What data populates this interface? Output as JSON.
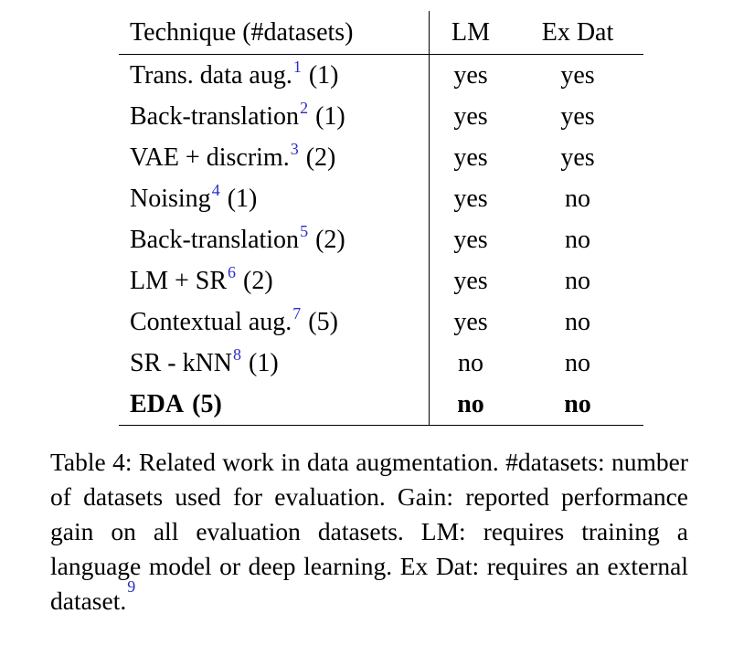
{
  "colors": {
    "footnote_link": "#2b2bc8",
    "text": "#000000",
    "background": "#ffffff"
  },
  "table": {
    "headers": {
      "technique": "Technique (#datasets)",
      "lm": "LM",
      "exdat": "Ex Dat"
    },
    "rows": [
      {
        "name": "Trans. data aug.",
        "ref": "1",
        "datasets": "(1)",
        "lm": "yes",
        "exdat": "yes"
      },
      {
        "name": "Back-translation",
        "ref": "2",
        "datasets": "(1)",
        "lm": "yes",
        "exdat": "yes"
      },
      {
        "name": "VAE + discrim.",
        "ref": "3",
        "datasets": "(2)",
        "lm": "yes",
        "exdat": "yes"
      },
      {
        "name": "Noising",
        "ref": "4",
        "datasets": "(1)",
        "lm": "yes",
        "exdat": "no"
      },
      {
        "name": "Back-translation",
        "ref": "5",
        "datasets": "(2)",
        "lm": "yes",
        "exdat": "no"
      },
      {
        "name": "LM + SR",
        "ref": "6",
        "datasets": "(2)",
        "lm": "yes",
        "exdat": "no"
      },
      {
        "name": "Contextual aug.",
        "ref": "7",
        "datasets": "(5)",
        "lm": "yes",
        "exdat": "no"
      },
      {
        "name": "SR - kNN",
        "ref": "8",
        "datasets": "(1)",
        "lm": "no",
        "exdat": "no"
      },
      {
        "name": "EDA",
        "ref": "",
        "datasets": "(5)",
        "lm": "no",
        "exdat": "no"
      }
    ]
  },
  "caption": {
    "label": "Table 4:",
    "text": "Related work in data augmentation. #datasets: number of datasets used for evaluation. Gain: reported performance gain on all evaluation datasets. LM: requires training a language model or deep learning. Ex Dat: requires an external dataset.",
    "ref": "9"
  }
}
